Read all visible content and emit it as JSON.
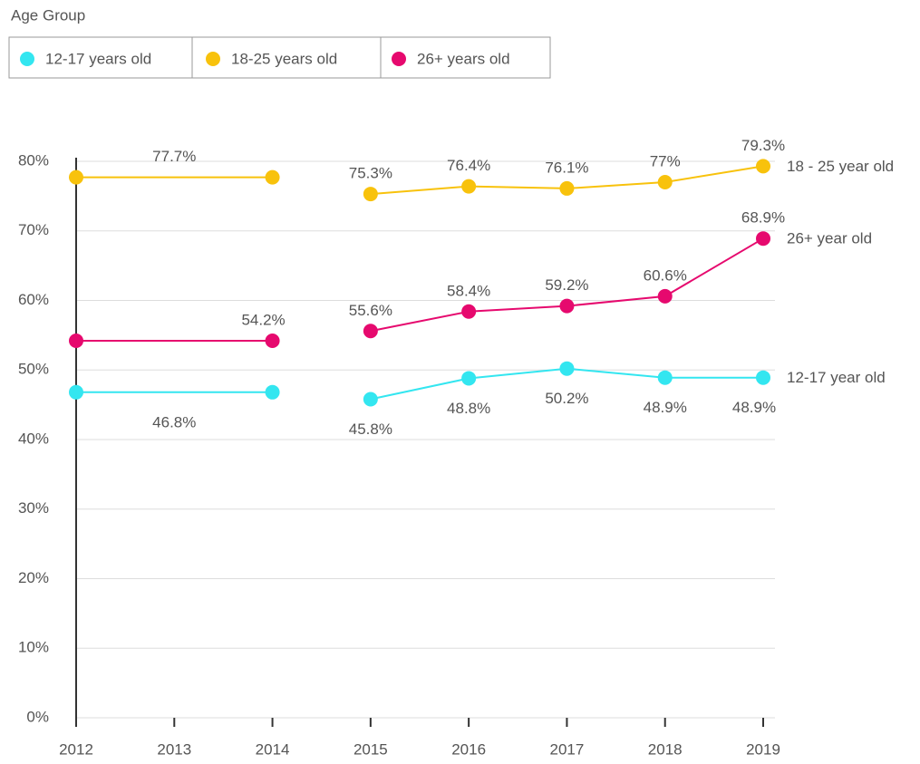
{
  "chart_data": {
    "type": "line",
    "legend_title": "Age Group",
    "xticks": [
      2012,
      2013,
      2014,
      2015,
      2016,
      2017,
      2018,
      2019
    ],
    "xlim": [
      2012,
      2019
    ],
    "ylim": [
      0,
      80
    ],
    "yticks": [
      {
        "value": 0,
        "label": "0%"
      },
      {
        "value": 10,
        "label": "10%"
      },
      {
        "value": 20,
        "label": "20%"
      },
      {
        "value": 30,
        "label": "30%"
      },
      {
        "value": 40,
        "label": "40%"
      },
      {
        "value": 50,
        "label": "50%"
      },
      {
        "value": 60,
        "label": "60%"
      },
      {
        "value": 70,
        "label": "70%"
      },
      {
        "value": 80,
        "label": "80%"
      }
    ],
    "grid": true,
    "x": [
      2012,
      2014,
      null,
      2015,
      2016,
      2017,
      2018,
      2019
    ],
    "series": [
      {
        "name": "12-17 years old",
        "color": "#33e6f0",
        "end_label": "12-17 year old",
        "values": [
          46.8,
          46.8,
          null,
          45.8,
          48.8,
          50.2,
          48.9,
          48.9
        ],
        "value_labels": [
          "46.8%",
          null,
          null,
          "45.8%",
          "48.8%",
          "50.2%",
          "48.9%",
          "48.9%"
        ]
      },
      {
        "name": "18-25 years old",
        "color": "#f8c20c",
        "end_label": "18 - 25 year old",
        "values": [
          77.7,
          77.7,
          null,
          75.3,
          76.4,
          76.1,
          77,
          79.3
        ],
        "value_labels": [
          "77.7%",
          null,
          null,
          "75.3%",
          "76.4%",
          "76.1%",
          "77%",
          "79.3%"
        ]
      },
      {
        "name": "26+ years old",
        "color": "#e6096e",
        "end_label": "26+  year old",
        "values": [
          54.2,
          54.2,
          null,
          55.6,
          58.4,
          59.2,
          60.6,
          68.9
        ],
        "value_labels": [
          null,
          "54.2%",
          null,
          "55.6%",
          "58.4%",
          "59.2%",
          "60.6%",
          "68.9%"
        ]
      }
    ]
  }
}
